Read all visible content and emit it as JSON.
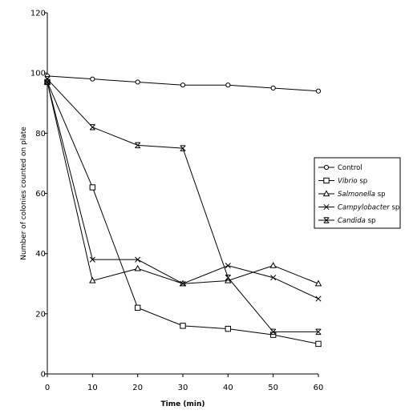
{
  "chart_data": {
    "type": "line",
    "title": "",
    "xlabel": "Time (min)",
    "ylabel": "Number of colonies counted on plate",
    "x": [
      0,
      10,
      20,
      30,
      40,
      50,
      60
    ],
    "xlim": [
      0,
      60
    ],
    "ylim": [
      0,
      120
    ],
    "x_ticks": [
      "0",
      "10",
      "20",
      "30",
      "40",
      "50",
      "60"
    ],
    "y_ticks": [
      "0",
      "20",
      "40",
      "60",
      "80",
      "100",
      "120"
    ],
    "grid": false,
    "legend_position": "right",
    "series": [
      {
        "name": "Control",
        "name_main": "Control",
        "name_suffix": "",
        "marker": "circle",
        "values": [
          99,
          98,
          97,
          96,
          96,
          95,
          94
        ]
      },
      {
        "name": "Vibrio sp",
        "name_main": "Vibrio",
        "name_suffix": " sp",
        "marker": "square",
        "values": [
          97,
          62,
          22,
          16,
          15,
          13,
          10
        ]
      },
      {
        "name": "Salmonella sp",
        "name_main": "Salmonella",
        "name_suffix": " sp",
        "marker": "triangle",
        "values": [
          97,
          31,
          35,
          30,
          31,
          36,
          30
        ]
      },
      {
        "name": "Campylobacter sp",
        "name_main": "Campylobacter",
        "name_suffix": " sp",
        "marker": "x",
        "values": [
          97,
          38,
          38,
          30,
          36,
          32,
          25
        ]
      },
      {
        "name": "Candida sp",
        "name_main": "Candida",
        "name_suffix": " sp",
        "marker": "star",
        "values": [
          98,
          82,
          76,
          75,
          32,
          14,
          14
        ]
      }
    ]
  }
}
